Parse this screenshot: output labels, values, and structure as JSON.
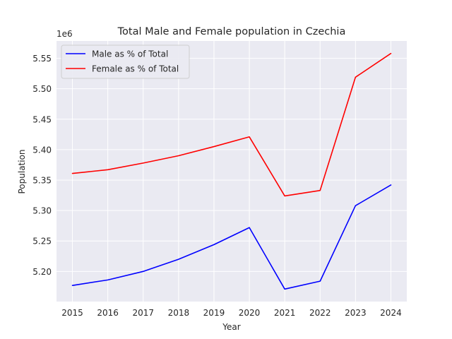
{
  "chart_data": {
    "type": "line",
    "title": "Total Male and Female population in Czechia",
    "xlabel": "Year",
    "ylabel": "Population",
    "y_offset_label": "1e6",
    "x": [
      2015,
      2016,
      2017,
      2018,
      2019,
      2020,
      2021,
      2022,
      2023,
      2024
    ],
    "x_tick_labels": [
      "2015",
      "2016",
      "2017",
      "2018",
      "2019",
      "2020",
      "2021",
      "2022",
      "2023",
      "2024"
    ],
    "y_ticks": [
      5.2,
      5.25,
      5.3,
      5.35,
      5.4,
      5.45,
      5.5,
      5.55
    ],
    "y_tick_labels": [
      "5.20",
      "5.25",
      "5.30",
      "5.35",
      "5.40",
      "5.45",
      "5.50",
      "5.55"
    ],
    "xlim": [
      2014.55,
      2024.45
    ],
    "ylim": [
      5.1505,
      5.5785
    ],
    "grid": true,
    "legend_position": "upper left",
    "series": [
      {
        "name": "Male as % of Total",
        "color": "#0000ff",
        "values": [
          5.177,
          5.186,
          5.2,
          5.22,
          5.244,
          5.272,
          5.171,
          5.184,
          5.308,
          5.342
        ]
      },
      {
        "name": "Female as % of Total",
        "color": "#ff0000",
        "values": [
          5.361,
          5.367,
          5.378,
          5.39,
          5.405,
          5.421,
          5.324,
          5.333,
          5.519,
          5.558
        ]
      }
    ]
  }
}
